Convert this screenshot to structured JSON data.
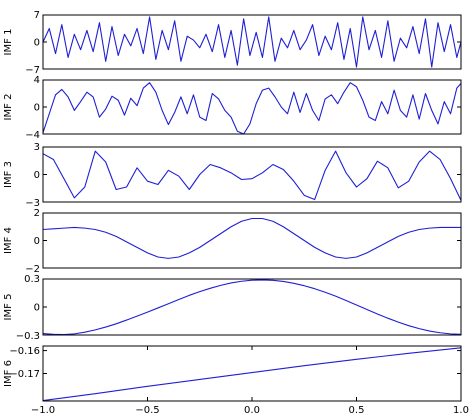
{
  "colors": {
    "line": "#1f1fd6",
    "axes": "#000000",
    "background": "#ffffff"
  },
  "chart_data": [
    {
      "type": "line",
      "ylabel": "IMF 1",
      "ylim": [
        -7,
        7
      ],
      "yticks": [
        "7",
        "0",
        "−7"
      ],
      "xlim": [
        -1.0,
        1.0
      ],
      "series": [
        {
          "x": [
            -1.0,
            -0.97,
            -0.94,
            -0.91,
            -0.88,
            -0.85,
            -0.82,
            -0.79,
            -0.76,
            -0.73,
            -0.7,
            -0.67,
            -0.64,
            -0.61,
            -0.58,
            -0.55,
            -0.52,
            -0.49,
            -0.46,
            -0.43,
            -0.4,
            -0.37,
            -0.34,
            -0.31,
            -0.28,
            -0.25,
            -0.22,
            -0.19,
            -0.16,
            -0.13,
            -0.1,
            -0.07,
            -0.04,
            -0.01,
            0.02,
            0.05,
            0.08,
            0.11,
            0.14,
            0.17,
            0.2,
            0.23,
            0.26,
            0.29,
            0.32,
            0.35,
            0.38,
            0.41,
            0.44,
            0.47,
            0.5,
            0.53,
            0.56,
            0.59,
            0.62,
            0.65,
            0.68,
            0.71,
            0.74,
            0.77,
            0.8,
            0.83,
            0.86,
            0.89,
            0.92,
            0.95,
            0.98,
            1.0
          ],
          "y": [
            0,
            3.5,
            -3,
            4.5,
            -4,
            2,
            -2,
            3,
            -2.5,
            5,
            -5,
            4,
            -3.5,
            2,
            -1,
            3.5,
            -3,
            6.5,
            -4.5,
            3,
            -2,
            5.5,
            -5,
            1.5,
            0.5,
            -1.5,
            2,
            -2.5,
            4.5,
            -4,
            3,
            -6,
            6,
            -3.5,
            2.5,
            -4,
            6.5,
            -5,
            1,
            -1.5,
            3,
            -2,
            0.5,
            4.5,
            -3.5,
            1.5,
            -2,
            5,
            -4.5,
            3.5,
            -6.5,
            6.5,
            -2,
            3,
            -4,
            5.5,
            -5,
            1,
            -1.5,
            4,
            -3,
            6,
            -6.5,
            5,
            -2.5,
            4.5,
            -4,
            0
          ]
        }
      ]
    },
    {
      "type": "line",
      "ylabel": "IMF 2",
      "ylim": [
        -4,
        4
      ],
      "yticks": [
        "4",
        "0",
        "−4"
      ],
      "xlim": [
        -1.0,
        1.0
      ],
      "series": [
        {
          "x": [
            -1.0,
            -0.97,
            -0.94,
            -0.91,
            -0.88,
            -0.85,
            -0.82,
            -0.79,
            -0.76,
            -0.73,
            -0.7,
            -0.67,
            -0.64,
            -0.61,
            -0.58,
            -0.55,
            -0.52,
            -0.49,
            -0.46,
            -0.43,
            -0.4,
            -0.37,
            -0.34,
            -0.31,
            -0.28,
            -0.25,
            -0.22,
            -0.19,
            -0.16,
            -0.13,
            -0.1,
            -0.07,
            -0.04,
            -0.01,
            0.02,
            0.05,
            0.08,
            0.11,
            0.14,
            0.17,
            0.2,
            0.23,
            0.26,
            0.29,
            0.32,
            0.35,
            0.38,
            0.41,
            0.44,
            0.47,
            0.5,
            0.53,
            0.56,
            0.59,
            0.62,
            0.65,
            0.68,
            0.71,
            0.74,
            0.77,
            0.8,
            0.83,
            0.86,
            0.89,
            0.92,
            0.95,
            0.98,
            1.0
          ],
          "y": [
            -3.8,
            -1,
            1.8,
            2.6,
            1.5,
            -0.5,
            0.8,
            2.2,
            1.5,
            -1.5,
            -0.3,
            1.6,
            1.0,
            -1.2,
            1.3,
            0.2,
            2.8,
            3.6,
            2.2,
            -0.5,
            -2.6,
            -0.8,
            1.5,
            -1.0,
            1.8,
            -1.5,
            -2.0,
            2.0,
            1.2,
            -0.5,
            -1.5,
            -3.6,
            -4.0,
            -2.5,
            0.5,
            2.5,
            2.8,
            1.5,
            0.0,
            -1.0,
            2.2,
            -0.8,
            2.0,
            -0.5,
            -2.0,
            1.2,
            1.8,
            0.5,
            2.2,
            3.6,
            3.0,
            1.0,
            -1.5,
            -2.0,
            0.8,
            -1.0,
            2.5,
            -0.5,
            -1.5,
            1.8,
            -1.8,
            2.0,
            -0.5,
            -2.5,
            0.8,
            -1.0,
            2.8,
            3.5
          ]
        }
      ]
    },
    {
      "type": "line",
      "ylabel": "IMF 3",
      "ylim": [
        -3.3,
        3.3
      ],
      "yticks": [
        "3",
        "0",
        "−3"
      ],
      "xlim": [
        -1.0,
        1.0
      ],
      "series": [
        {
          "x": [
            -1.0,
            -0.95,
            -0.9,
            -0.85,
            -0.8,
            -0.75,
            -0.7,
            -0.65,
            -0.6,
            -0.55,
            -0.5,
            -0.45,
            -0.4,
            -0.35,
            -0.3,
            -0.25,
            -0.2,
            -0.15,
            -0.1,
            -0.05,
            0.0,
            0.05,
            0.1,
            0.15,
            0.2,
            0.25,
            0.3,
            0.35,
            0.4,
            0.45,
            0.5,
            0.55,
            0.6,
            0.65,
            0.7,
            0.75,
            0.8,
            0.85,
            0.9,
            0.95,
            1.0
          ],
          "y": [
            2.5,
            1.8,
            -0.5,
            -2.8,
            -1.5,
            2.8,
            1.5,
            -1.8,
            -1.5,
            0.8,
            -0.8,
            -1.2,
            0.5,
            -0.2,
            -1.8,
            0.0,
            1.2,
            0.8,
            0.2,
            -0.6,
            -0.5,
            0.2,
            1.2,
            0.6,
            -0.8,
            -2.5,
            -3.0,
            0.5,
            2.8,
            0.2,
            -1.5,
            -0.5,
            1.6,
            0.8,
            -1.6,
            -0.8,
            1.5,
            2.8,
            1.8,
            -0.5,
            -3.1
          ]
        }
      ]
    },
    {
      "type": "line",
      "ylabel": "IMF 4",
      "ylim": [
        -2,
        2
      ],
      "yticks": [
        "2",
        "0",
        "−2"
      ],
      "xlim": [
        -1.0,
        1.0
      ],
      "series": [
        {
          "x": [
            -1.0,
            -0.95,
            -0.9,
            -0.85,
            -0.8,
            -0.75,
            -0.7,
            -0.65,
            -0.6,
            -0.55,
            -0.5,
            -0.45,
            -0.4,
            -0.35,
            -0.3,
            -0.25,
            -0.2,
            -0.15,
            -0.1,
            -0.05,
            0.0,
            0.05,
            0.1,
            0.15,
            0.2,
            0.25,
            0.3,
            0.35,
            0.4,
            0.45,
            0.5,
            0.55,
            0.6,
            0.65,
            0.7,
            0.75,
            0.8,
            0.85,
            0.9,
            0.95,
            1.0
          ],
          "y": [
            0.8,
            0.85,
            0.9,
            0.95,
            0.9,
            0.8,
            0.6,
            0.3,
            -0.1,
            -0.5,
            -0.9,
            -1.2,
            -1.3,
            -1.2,
            -0.9,
            -0.5,
            0.0,
            0.5,
            1.0,
            1.4,
            1.6,
            1.6,
            1.4,
            1.0,
            0.5,
            0.0,
            -0.5,
            -0.9,
            -1.2,
            -1.3,
            -1.2,
            -0.9,
            -0.5,
            -0.1,
            0.3,
            0.6,
            0.8,
            0.9,
            0.95,
            0.95,
            0.95
          ]
        }
      ]
    },
    {
      "type": "line",
      "ylabel": "IMF 5",
      "ylim": [
        -0.3,
        0.3
      ],
      "yticks": [
        "0.3",
        "0",
        "−0.3"
      ],
      "xlim": [
        -1.0,
        1.0
      ],
      "series": [
        {
          "x": [
            -1.0,
            -0.95,
            -0.9,
            -0.85,
            -0.8,
            -0.75,
            -0.7,
            -0.65,
            -0.6,
            -0.55,
            -0.5,
            -0.45,
            -0.4,
            -0.35,
            -0.3,
            -0.25,
            -0.2,
            -0.15,
            -0.1,
            -0.05,
            0.0,
            0.05,
            0.1,
            0.15,
            0.2,
            0.25,
            0.3,
            0.35,
            0.4,
            0.45,
            0.5,
            0.55,
            0.6,
            0.65,
            0.7,
            0.75,
            0.8,
            0.85,
            0.9,
            0.95,
            1.0
          ],
          "y": [
            -0.285,
            -0.293,
            -0.295,
            -0.288,
            -0.27,
            -0.245,
            -0.215,
            -0.18,
            -0.14,
            -0.098,
            -0.055,
            -0.01,
            0.035,
            0.08,
            0.125,
            0.165,
            0.2,
            0.232,
            0.258,
            0.276,
            0.287,
            0.29,
            0.286,
            0.274,
            0.254,
            0.228,
            0.196,
            0.158,
            0.116,
            0.07,
            0.022,
            -0.027,
            -0.075,
            -0.12,
            -0.162,
            -0.2,
            -0.232,
            -0.258,
            -0.276,
            -0.288,
            -0.293
          ]
        }
      ]
    },
    {
      "type": "line",
      "ylabel": "IMF 6",
      "ylim": [
        -0.182,
        -0.158
      ],
      "yticks": [
        "−0.16",
        "−0.17"
      ],
      "ytick_values": [
        -0.16,
        -0.17
      ],
      "xlim": [
        -1.0,
        1.0
      ],
      "xticks": [
        "−1.0",
        "−0.5",
        "0.0",
        "0.5",
        "1.0"
      ],
      "xtick_values": [
        -1.0,
        -0.5,
        0.0,
        0.5,
        1.0
      ],
      "series": [
        {
          "x": [
            -1.0,
            -0.75,
            -0.5,
            -0.25,
            0.0,
            0.25,
            0.5,
            0.75,
            1.0
          ],
          "y": [
            -0.1818,
            -0.1788,
            -0.1756,
            -0.1726,
            -0.1696,
            -0.1666,
            -0.1638,
            -0.1612,
            -0.1588
          ]
        }
      ]
    }
  ]
}
